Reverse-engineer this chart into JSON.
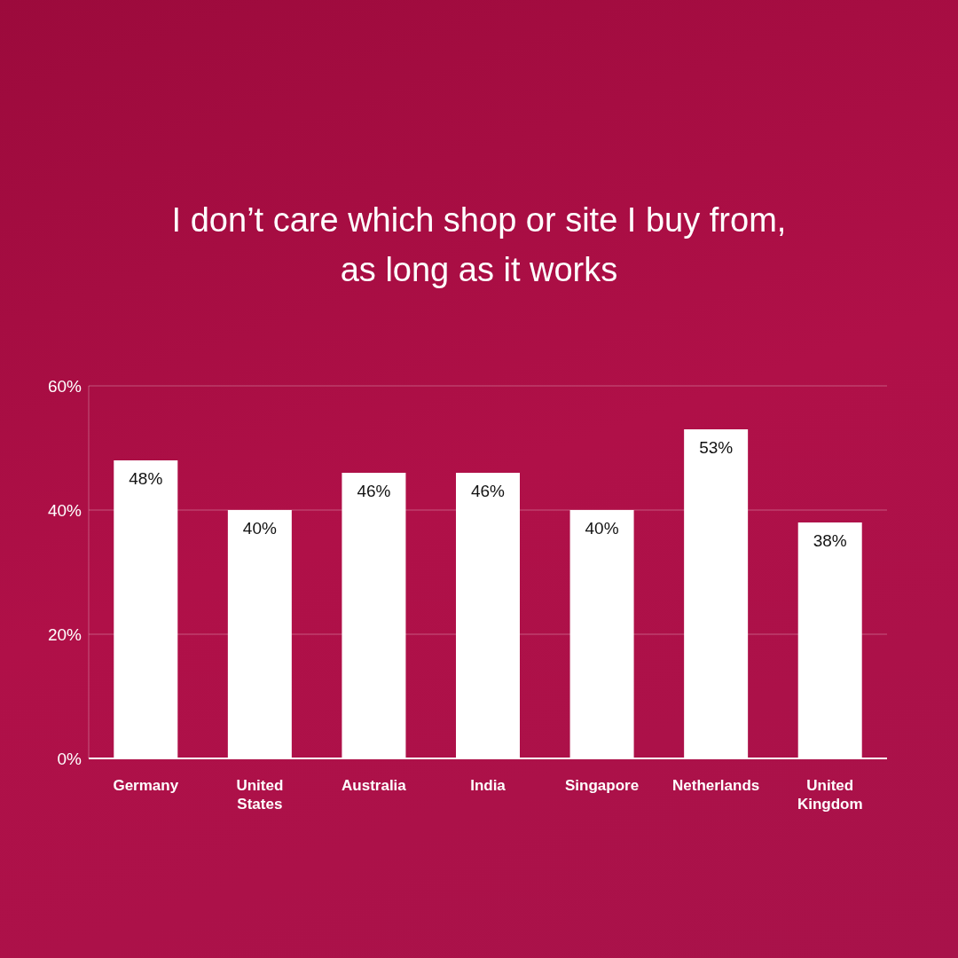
{
  "chart_data": {
    "type": "bar",
    "title": "I don’t care which shop or site I buy from, as long as it works",
    "categories": [
      "Germany",
      "United States",
      "Australia",
      "India",
      "Singapore",
      "Netherlands",
      "United Kingdom"
    ],
    "values": [
      48,
      40,
      46,
      46,
      40,
      53,
      38
    ],
    "color": "#ffffff",
    "ylim": [
      0,
      60
    ],
    "yticks": [
      {
        "value": 0,
        "label": "0%"
      },
      {
        "value": 20,
        "label": "20%"
      },
      {
        "value": 40,
        "label": "40%"
      },
      {
        "value": 60,
        "label": "60%"
      }
    ],
    "grid": "y",
    "value_labels": [
      "48%",
      "40%",
      "46%",
      "46%",
      "40%",
      "53%",
      "38%"
    ]
  }
}
